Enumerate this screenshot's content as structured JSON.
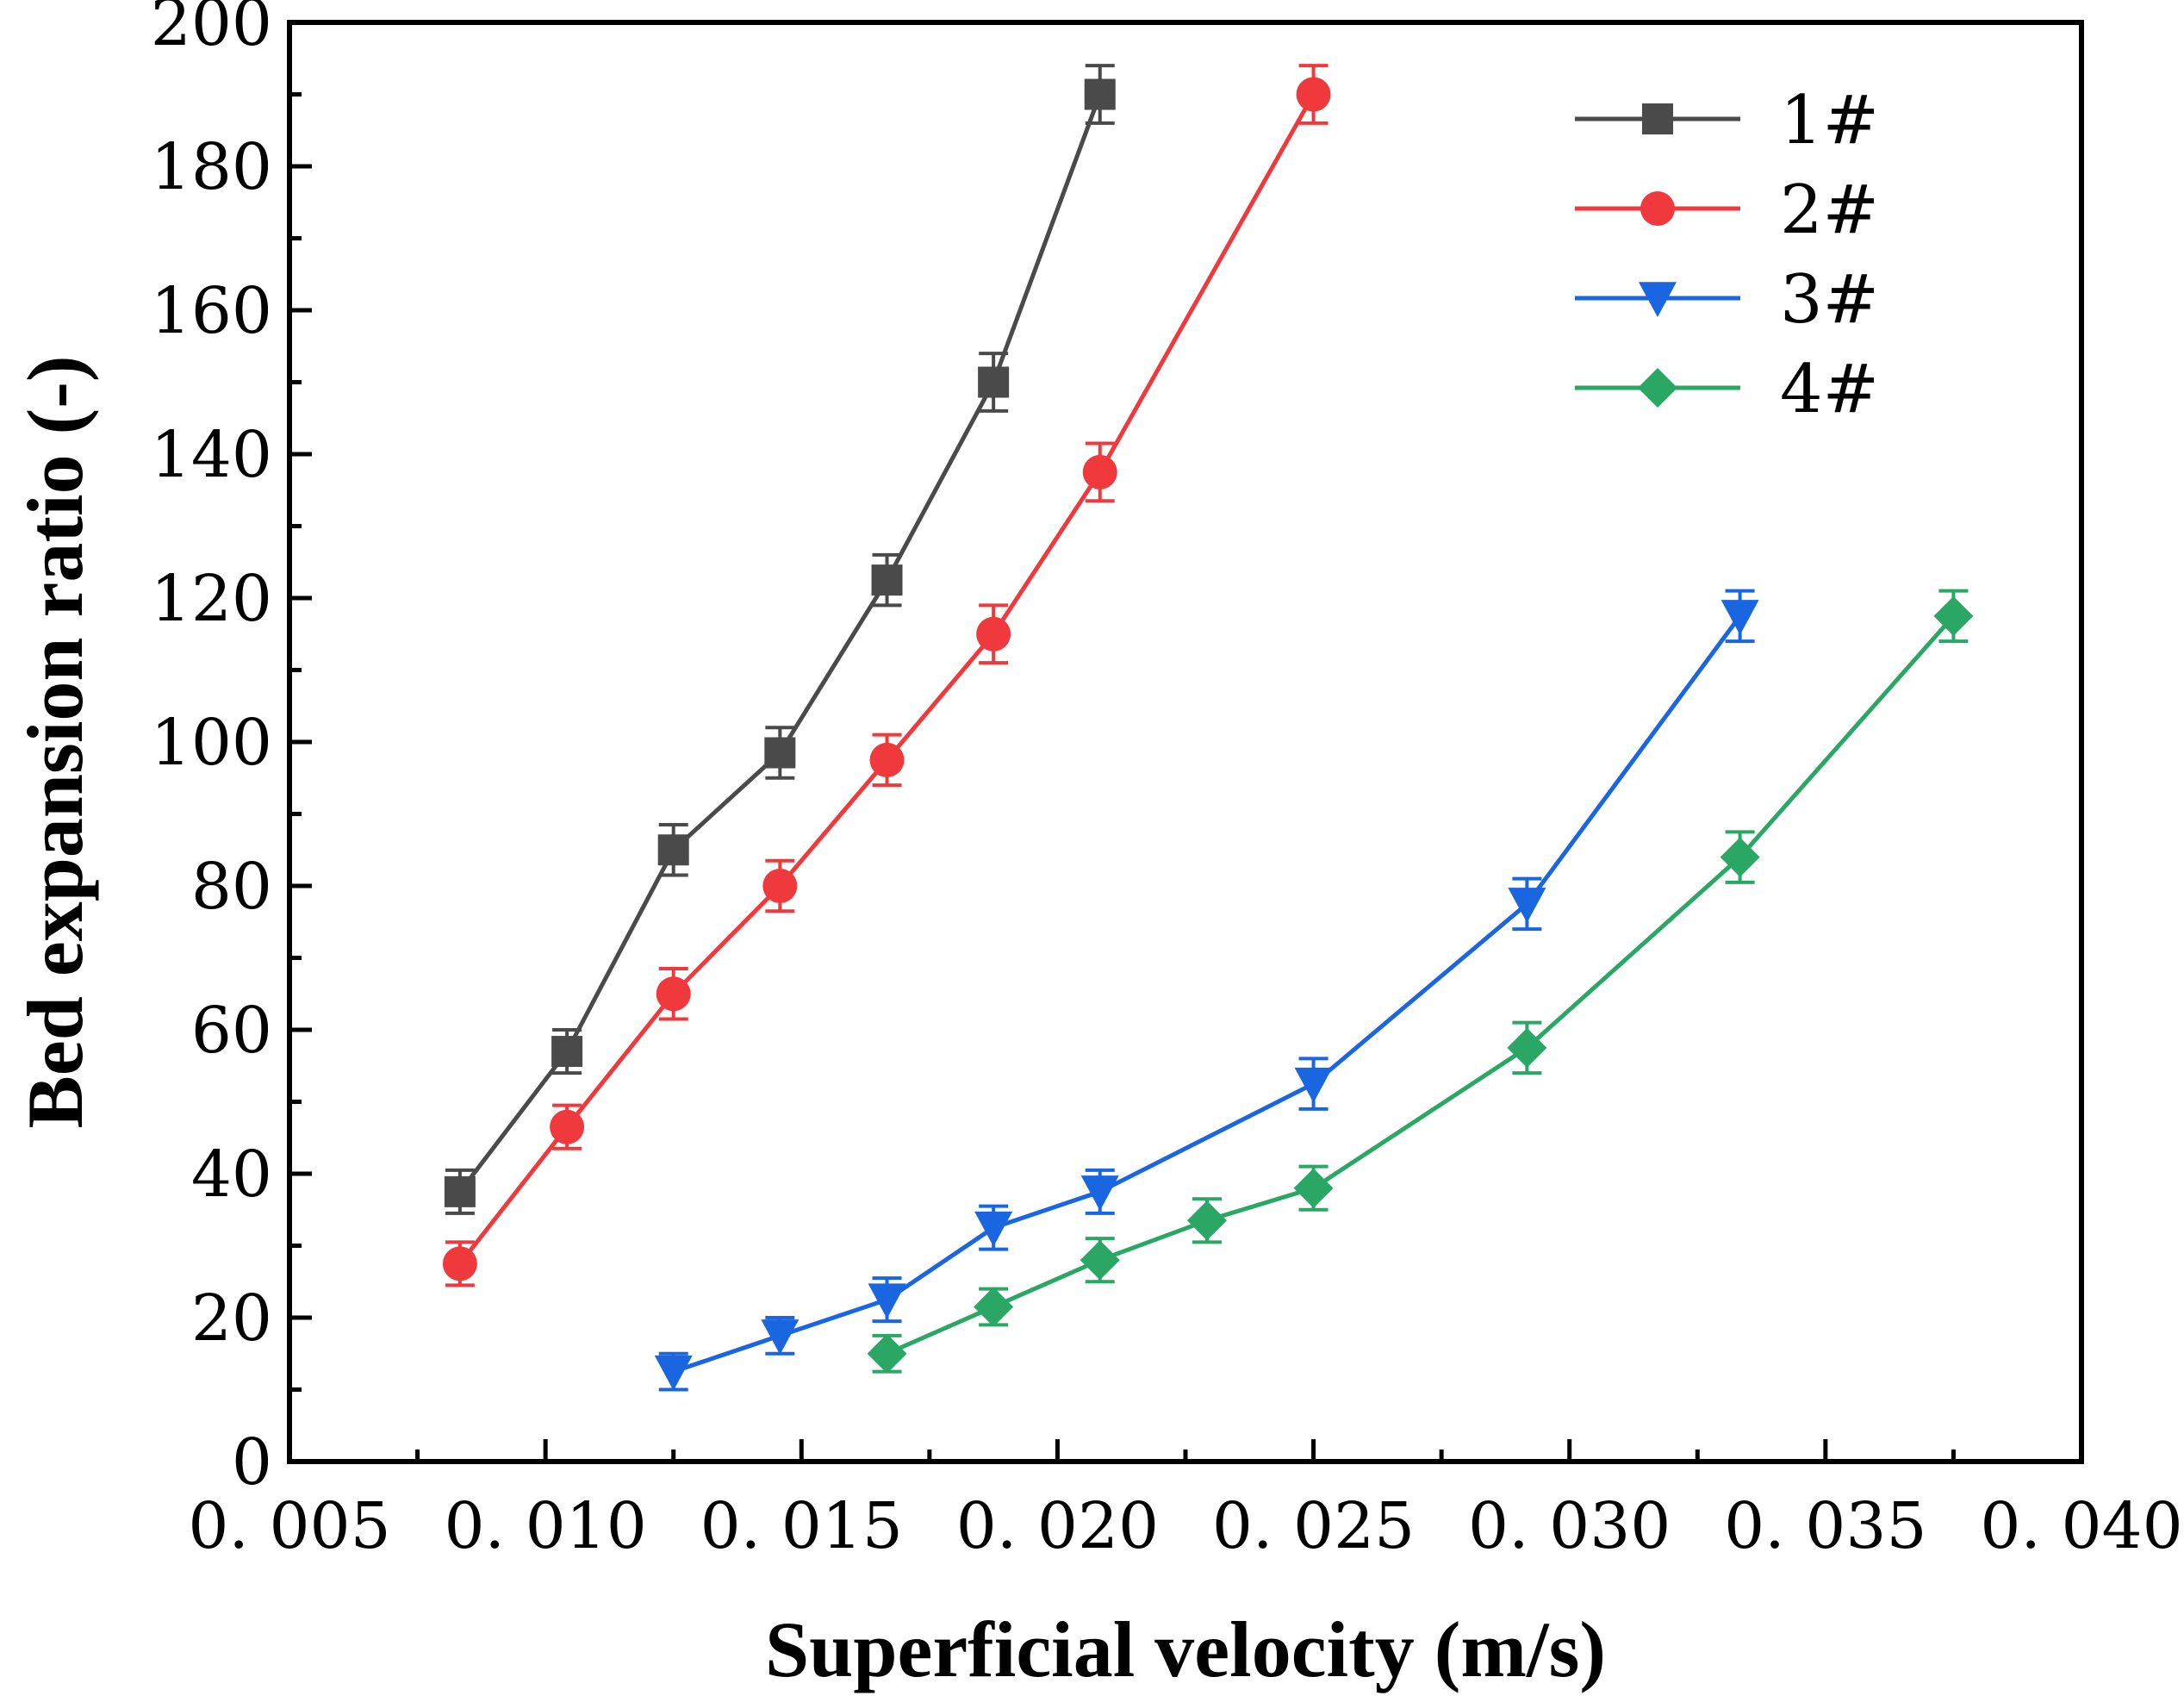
{
  "chart_data": {
    "type": "line",
    "title": "",
    "xlabel": "Superficial velocity (m/s)",
    "ylabel": "Bed expansion ratio (-)",
    "xlim": [
      0.005,
      0.04
    ],
    "ylim": [
      0,
      200
    ],
    "xticks": [
      0.005,
      0.01,
      0.015,
      0.02,
      0.025,
      0.03,
      0.035,
      0.04
    ],
    "xtick_labels": [
      "0. 005",
      "0. 010",
      "0. 015",
      "0. 020",
      "0. 025",
      "0. 030",
      "0. 035",
      "0. 040"
    ],
    "yticks": [
      0,
      20,
      40,
      60,
      80,
      100,
      120,
      140,
      160,
      180,
      200
    ],
    "ytick_labels": [
      "0",
      "20",
      "40",
      "60",
      "80",
      "100",
      "120",
      "140",
      "160",
      "180",
      "200"
    ],
    "grid": false,
    "legend_position": "top-right",
    "series": [
      {
        "name": "1#",
        "color": "#4a4a4a",
        "marker": "square",
        "x": [
          0.00833,
          0.01042,
          0.0125,
          0.01458,
          0.01667,
          0.01875,
          0.02083
        ],
        "y": [
          37.5,
          57,
          85,
          98.5,
          122.5,
          150,
          190
        ],
        "err": [
          3,
          3,
          3.5,
          3.5,
          3.5,
          4,
          4
        ]
      },
      {
        "name": "2#",
        "color": "#f0393c",
        "marker": "circle",
        "x": [
          0.00833,
          0.01042,
          0.0125,
          0.01458,
          0.01667,
          0.01875,
          0.02083,
          0.025
        ],
        "y": [
          27.5,
          46.5,
          65,
          80,
          97.5,
          115,
          137.5,
          190
        ],
        "err": [
          3,
          3,
          3.5,
          3.5,
          3.5,
          4,
          4,
          4
        ]
      },
      {
        "name": "3#",
        "color": "#1a66e0",
        "marker": "triangle-down",
        "x": [
          0.0125,
          0.01458,
          0.01667,
          0.01875,
          0.02083,
          0.025,
          0.02917,
          0.03333
        ],
        "y": [
          12.5,
          17.5,
          22.5,
          32.5,
          37.5,
          52.5,
          77.5,
          117.5
        ],
        "err": [
          2.5,
          2.5,
          3,
          3,
          3,
          3.5,
          3.5,
          3.5
        ]
      },
      {
        "name": "4#",
        "color": "#2aa764",
        "marker": "diamond",
        "x": [
          0.01667,
          0.01875,
          0.02083,
          0.02292,
          0.025,
          0.02917,
          0.03333,
          0.0375
        ],
        "y": [
          15,
          21.5,
          28,
          33.5,
          38,
          57.5,
          84,
          117.5
        ],
        "err": [
          2.5,
          2.5,
          3,
          3,
          3,
          3.5,
          3.5,
          3.5
        ]
      }
    ]
  }
}
